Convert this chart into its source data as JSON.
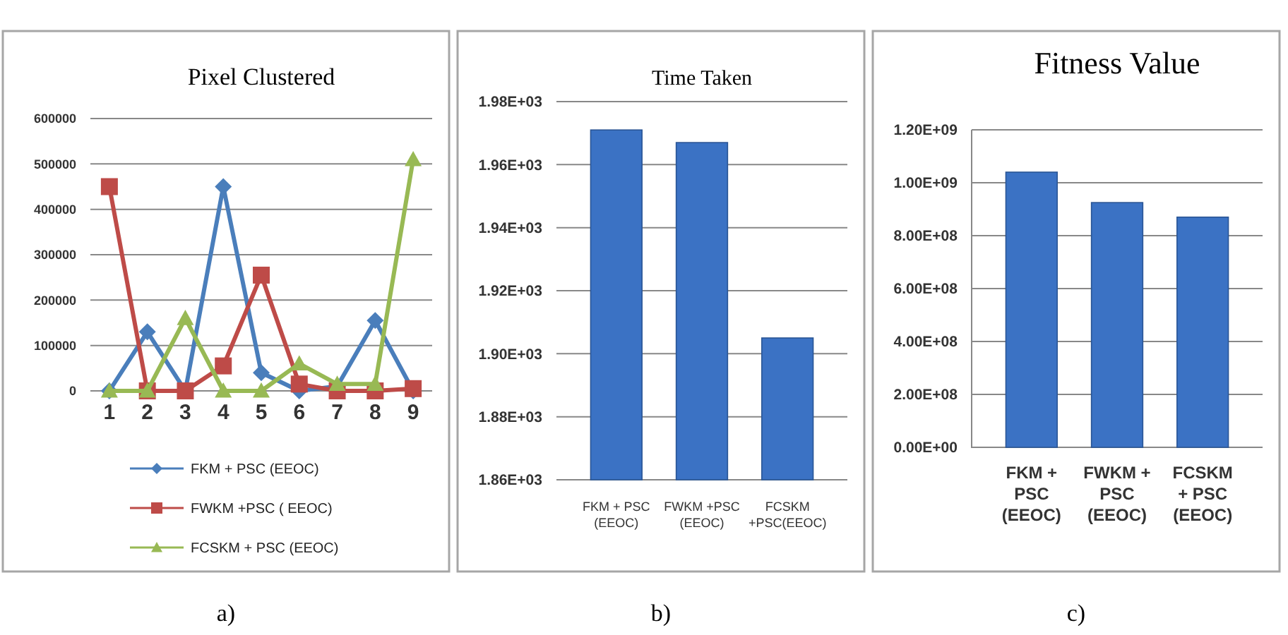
{
  "chart_data": [
    {
      "type": "line",
      "title": "Pixel Clustered",
      "categories": [
        "1",
        "2",
        "3",
        "4",
        "5",
        "6",
        "7",
        "8",
        "9"
      ],
      "series": [
        {
          "name": "FKM + PSC (EEOC)",
          "color": "#4a7ebb",
          "marker": "diamond",
          "values": [
            0,
            130000,
            0,
            450000,
            40000,
            0,
            10000,
            155000,
            0
          ]
        },
        {
          "name": "FWKM +PSC ( EEOC)",
          "color": "#be4b48",
          "marker": "square",
          "values": [
            450000,
            0,
            0,
            55000,
            255000,
            15000,
            0,
            0,
            5000
          ]
        },
        {
          "name": "FCSKM + PSC (EEOC)",
          "color": "#98b954",
          "marker": "triangle",
          "values": [
            0,
            0,
            160000,
            0,
            0,
            60000,
            15000,
            15000,
            510000
          ]
        }
      ],
      "ylim": [
        0,
        600000
      ],
      "yticks": [
        0,
        100000,
        200000,
        300000,
        400000,
        500000,
        600000
      ],
      "grid": "y",
      "legend": "bottom",
      "annotations": [
        "a)"
      ]
    },
    {
      "type": "bar",
      "title": "Time Taken",
      "categories": [
        "FKM + PSC (EEOC)",
        "FWKM +PSC (EEOC)",
        "FCSKM +PSC(EEOC)"
      ],
      "values": [
        1971,
        1967,
        1905
      ],
      "color": "#3b72c4",
      "ylim": [
        1860,
        1980
      ],
      "yticks": [
        {
          "value": 1860,
          "label": "1.86E+03"
        },
        {
          "value": 1880,
          "label": "1.88E+03"
        },
        {
          "value": 1900,
          "label": "1.90E+03"
        },
        {
          "value": 1920,
          "label": "1.92E+03"
        },
        {
          "value": 1940,
          "label": "1.94E+03"
        },
        {
          "value": 1960,
          "label": "1.96E+03"
        },
        {
          "value": 1980,
          "label": "1.98E+03"
        }
      ],
      "grid": "y",
      "annotations": [
        "b)"
      ]
    },
    {
      "type": "bar",
      "title": "Fitness Value",
      "categories": [
        "FKM + PSC (EEOC)",
        "FWKM + PSC (EEOC)",
        "FCSKM + PSC (EEOC)"
      ],
      "values": [
        1040000000,
        925000000,
        870000000
      ],
      "color": "#3b72c4",
      "ylim": [
        0,
        1200000000
      ],
      "yticks": [
        {
          "value": 0,
          "label": "0.00E+00"
        },
        {
          "value": 200000000,
          "label": "2.00E+08"
        },
        {
          "value": 400000000,
          "label": "4.00E+08"
        },
        {
          "value": 600000000,
          "label": "6.00E+08"
        },
        {
          "value": 800000000,
          "label": "8.00E+08"
        },
        {
          "value": 1000000000,
          "label": "1.00E+09"
        },
        {
          "value": 1200000000,
          "label": "1.20E+09"
        }
      ],
      "grid": "y",
      "annotations": [
        "c)"
      ]
    }
  ]
}
